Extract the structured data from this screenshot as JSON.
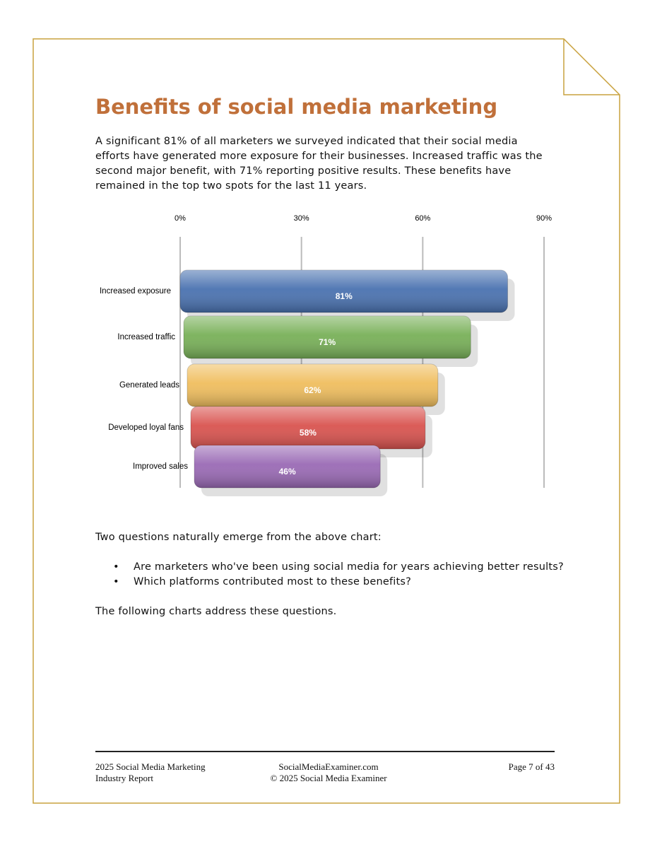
{
  "header": {
    "title": "Benefits of social media marketing"
  },
  "intro": "A significant 81% of all marketers we surveyed indicated that their social media efforts have generated more exposure for their businesses. Increased traffic was the second major benefit, with 71% reporting positive results. These benefits have remained in the top two spots for the last 11 years.",
  "chart_data": {
    "type": "bar",
    "orientation": "horizontal",
    "categories": [
      "Increased exposure",
      "Increased traffic",
      "Generated leads",
      "Developed loyal fans",
      "Improved sales"
    ],
    "values": [
      81,
      71,
      62,
      58,
      46
    ],
    "value_labels": [
      "81%",
      "71%",
      "62%",
      "58%",
      "46%"
    ],
    "colors": [
      "#4a72b0",
      "#78b058",
      "#f0be5e",
      "#d9534f",
      "#9a6ab5"
    ],
    "xlim": [
      0,
      90
    ],
    "xticks": [
      {
        "value": 0,
        "label": "0%"
      },
      {
        "value": 30,
        "label": "30%"
      },
      {
        "value": 60,
        "label": "60%"
      },
      {
        "value": 90,
        "label": "90%"
      }
    ],
    "grid": true
  },
  "questions_intro": "Two questions naturally emerge from the above chart:",
  "bullets": [
    "Are marketers who've been using social media for years achieving better results?",
    "Which platforms contributed most to these benefits?"
  ],
  "closing": "The following charts address these questions.",
  "footer": {
    "left": [
      "2025 Social Media Marketing",
      "Industry Report"
    ],
    "center": [
      "SocialMediaExaminer.com",
      "© 2025 Social Media Examiner"
    ],
    "right": "Page 7 of 43"
  }
}
